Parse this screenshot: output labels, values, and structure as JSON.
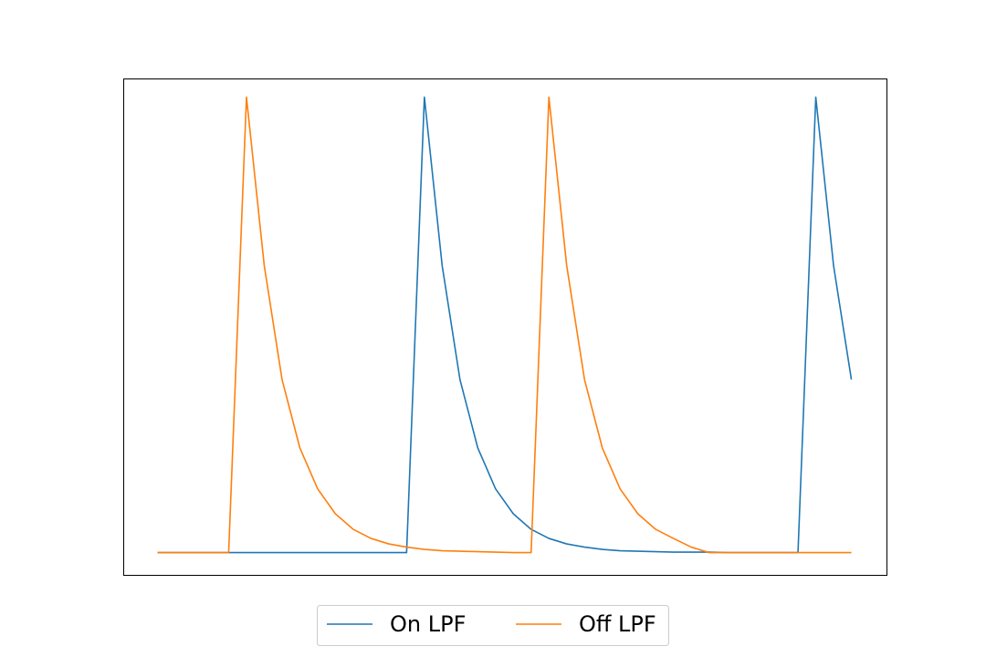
{
  "chart_data": {
    "type": "line",
    "title": "",
    "xlabel": "",
    "ylabel": "",
    "grid": false,
    "legend_position": "bottom-center",
    "xlim": [
      -1.9,
      41
    ],
    "ylim": [
      -0.05,
      1.04
    ],
    "x": [
      0,
      1,
      2,
      3,
      4,
      5,
      6,
      7,
      8,
      9,
      10,
      11,
      12,
      13,
      14,
      15,
      16,
      17,
      18,
      19,
      20,
      21,
      22,
      23,
      24,
      25,
      26,
      27,
      28,
      29,
      30,
      31,
      32,
      33,
      34,
      35,
      36,
      37,
      38,
      39
    ],
    "series": [
      {
        "name": "On LPF",
        "color": "#1f77b4",
        "values": [
          0,
          0,
          0,
          0,
          0,
          0,
          0,
          0,
          0,
          0,
          0,
          0,
          0,
          0,
          0,
          1.0,
          0.63,
          0.38,
          0.23,
          0.14,
          0.085,
          0.051,
          0.031,
          0.019,
          0.012,
          0.007,
          0.004,
          0.003,
          0.002,
          0.001,
          0.001,
          0.001,
          0.0,
          0.0,
          0.0,
          0.0,
          0.0,
          1.0,
          0.63,
          0.38
        ]
      },
      {
        "name": "Off LPF",
        "color": "#ff7f0e",
        "values": [
          0,
          0,
          0,
          0,
          0,
          1.0,
          0.63,
          0.38,
          0.23,
          0.14,
          0.085,
          0.051,
          0.031,
          0.019,
          0.012,
          0.007,
          0.004,
          0.003,
          0.002,
          0.001,
          0.0,
          0.0,
          1.0,
          0.63,
          0.38,
          0.23,
          0.14,
          0.085,
          0.051,
          0.031,
          0.012,
          0.0,
          0.0,
          0.0,
          0.0,
          0.0,
          0.0,
          0.0,
          0.0,
          0.0
        ]
      }
    ]
  }
}
